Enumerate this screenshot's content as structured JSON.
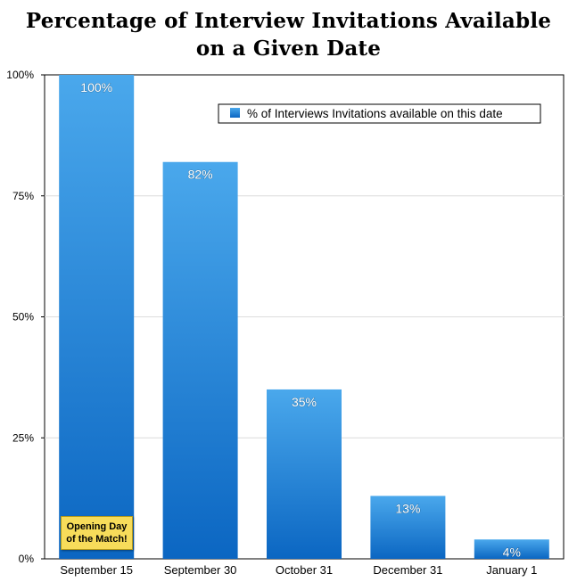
{
  "chart_data": {
    "type": "bar",
    "title_line1": "Percentage of Interview Invitations Available",
    "title_line2": "on a Given Date",
    "categories": [
      "September 15",
      "September 30",
      "October 31",
      "December 31",
      "January 1"
    ],
    "series": [
      {
        "name": "% of Interviews Invitations available on this date",
        "values": [
          100,
          82,
          35,
          13,
          4
        ],
        "labels": [
          "100%",
          "82%",
          "35%",
          "13%",
          "4%"
        ]
      }
    ],
    "ylim": [
      0,
      100
    ],
    "yticks": [
      0,
      25,
      50,
      75,
      100
    ],
    "ytick_labels": [
      "0%",
      "25%",
      "50%",
      "75%",
      "100%"
    ],
    "grid": true,
    "legend_position": "top-right",
    "bar_color_top": "#4aa8ec",
    "bar_color_bottom": "#0b66c2"
  },
  "annotation": {
    "line1": "Opening Day",
    "line2": "of the Match!"
  }
}
